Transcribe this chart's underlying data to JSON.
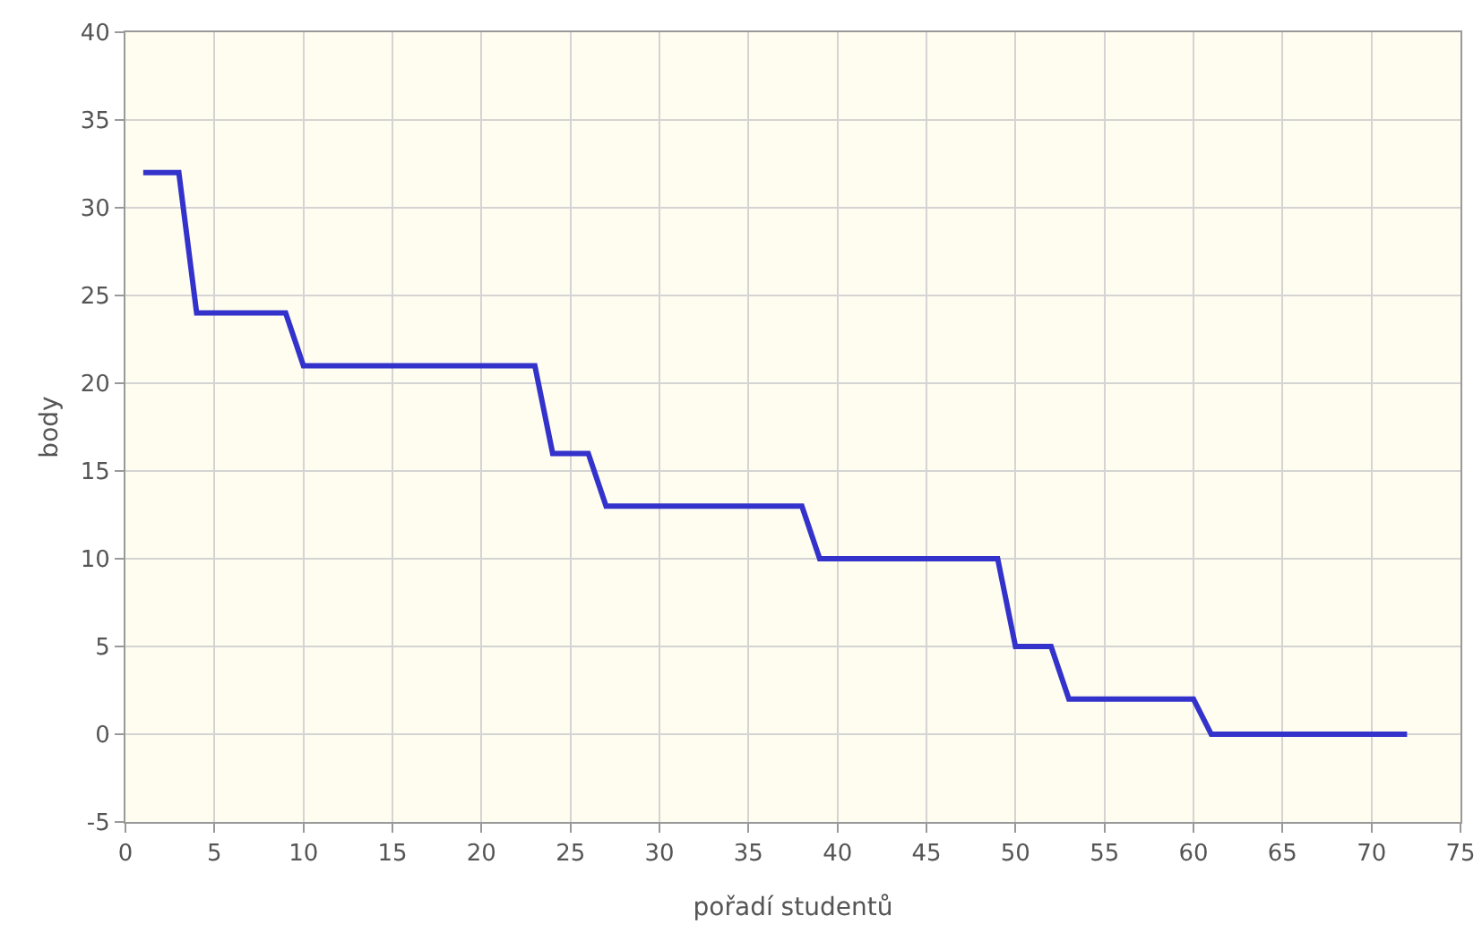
{
  "chart_data": {
    "type": "line",
    "xlabel": "pořadí studentů",
    "ylabel": "body",
    "x": [
      1,
      2,
      3,
      4,
      5,
      6,
      7,
      8,
      9,
      10,
      11,
      12,
      13,
      14,
      15,
      16,
      17,
      18,
      19,
      20,
      21,
      22,
      23,
      24,
      25,
      26,
      27,
      28,
      29,
      30,
      31,
      32,
      33,
      34,
      35,
      36,
      37,
      38,
      39,
      40,
      41,
      42,
      43,
      44,
      45,
      46,
      47,
      48,
      49,
      50,
      51,
      52,
      53,
      54,
      55,
      56,
      57,
      58,
      59,
      60,
      61,
      62,
      63,
      64,
      65,
      66,
      67,
      68,
      69,
      70,
      71,
      72
    ],
    "series": [
      {
        "color": "#3333cc",
        "values": [
          32,
          32,
          32,
          24,
          24,
          24,
          24,
          24,
          24,
          21,
          21,
          21,
          21,
          21,
          21,
          21,
          21,
          21,
          21,
          21,
          21,
          21,
          21,
          16,
          16,
          16,
          13,
          13,
          13,
          13,
          13,
          13,
          13,
          13,
          13,
          13,
          13,
          13,
          10,
          10,
          10,
          10,
          10,
          10,
          10,
          10,
          10,
          10,
          10,
          5,
          5,
          5,
          2,
          2,
          2,
          2,
          2,
          2,
          2,
          2,
          0,
          0,
          0,
          0,
          0,
          0,
          0,
          0,
          0,
          0,
          0,
          0
        ]
      }
    ],
    "xlim": [
      0,
      75
    ],
    "xticks": [
      0,
      5,
      10,
      15,
      20,
      25,
      30,
      35,
      40,
      45,
      50,
      55,
      60,
      65,
      70,
      75
    ],
    "ylim": [
      -5,
      40
    ],
    "yticks": [
      -5,
      0,
      5,
      10,
      15,
      20,
      25,
      30,
      35,
      40
    ],
    "grid": true,
    "marker": "none",
    "line_style": "solid"
  }
}
